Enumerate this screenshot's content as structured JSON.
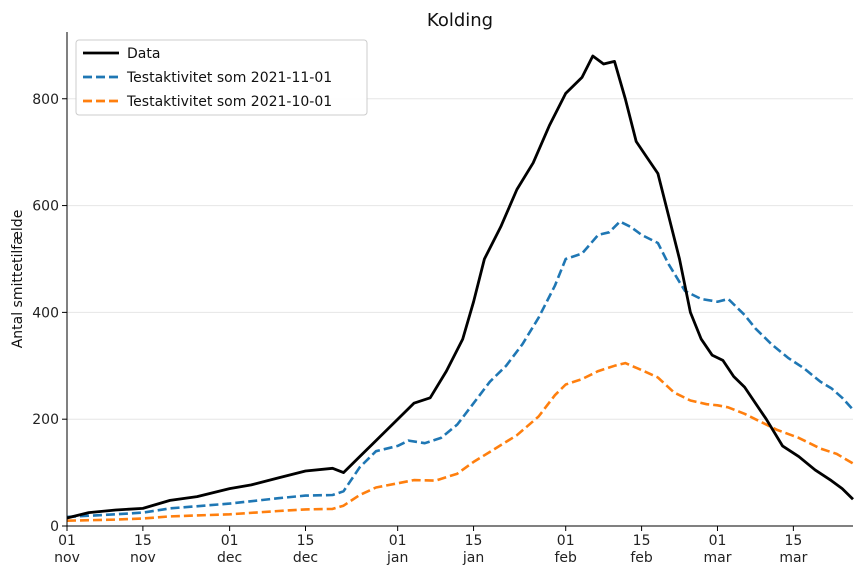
{
  "chart_data": {
    "type": "line",
    "title": "Kolding",
    "ylabel": "Antal smittetilfælde",
    "xlabel": "",
    "xlim": [
      "2021-11-01",
      "2022-03-26"
    ],
    "ylim": [
      0,
      925
    ],
    "yticks": [
      0,
      200,
      400,
      600,
      800
    ],
    "xticks": [
      {
        "date": "2021-11-01",
        "label": [
          "01",
          "nov"
        ]
      },
      {
        "date": "2021-11-15",
        "label": [
          "15",
          "nov"
        ]
      },
      {
        "date": "2021-12-01",
        "label": [
          "01",
          "dec"
        ]
      },
      {
        "date": "2021-12-15",
        "label": [
          "15",
          "dec"
        ]
      },
      {
        "date": "2022-01-01",
        "label": [
          "01",
          "jan"
        ]
      },
      {
        "date": "2022-01-15",
        "label": [
          "15",
          "jan"
        ]
      },
      {
        "date": "2022-02-01",
        "label": [
          "01",
          "feb"
        ]
      },
      {
        "date": "2022-02-15",
        "label": [
          "15",
          "feb"
        ]
      },
      {
        "date": "2022-03-01",
        "label": [
          "01",
          "mar"
        ]
      },
      {
        "date": "2022-03-15",
        "label": [
          "15",
          "mar"
        ]
      }
    ],
    "grid": "horizontal",
    "legend_position": "top-left",
    "series": [
      {
        "name": "Data",
        "color": "#000000",
        "style": "solid",
        "points": [
          [
            "2021-11-01",
            15
          ],
          [
            "2021-11-05",
            25
          ],
          [
            "2021-11-10",
            30
          ],
          [
            "2021-11-15",
            33
          ],
          [
            "2021-11-20",
            48
          ],
          [
            "2021-11-25",
            55
          ],
          [
            "2021-12-01",
            70
          ],
          [
            "2021-12-05",
            77
          ],
          [
            "2021-12-10",
            90
          ],
          [
            "2021-12-15",
            103
          ],
          [
            "2021-12-20",
            108
          ],
          [
            "2021-12-22",
            100
          ],
          [
            "2021-12-25",
            130
          ],
          [
            "2021-12-28",
            160
          ],
          [
            "2022-01-01",
            200
          ],
          [
            "2022-01-04",
            230
          ],
          [
            "2022-01-07",
            240
          ],
          [
            "2022-01-10",
            290
          ],
          [
            "2022-01-13",
            350
          ],
          [
            "2022-01-15",
            420
          ],
          [
            "2022-01-17",
            500
          ],
          [
            "2022-01-20",
            560
          ],
          [
            "2022-01-23",
            630
          ],
          [
            "2022-01-26",
            680
          ],
          [
            "2022-01-29",
            750
          ],
          [
            "2022-02-01",
            810
          ],
          [
            "2022-02-04",
            840
          ],
          [
            "2022-02-06",
            880
          ],
          [
            "2022-02-08",
            865
          ],
          [
            "2022-02-10",
            870
          ],
          [
            "2022-02-12",
            800
          ],
          [
            "2022-02-14",
            720
          ],
          [
            "2022-02-16",
            690
          ],
          [
            "2022-02-18",
            660
          ],
          [
            "2022-02-20",
            580
          ],
          [
            "2022-02-22",
            500
          ],
          [
            "2022-02-24",
            400
          ],
          [
            "2022-02-26",
            350
          ],
          [
            "2022-02-28",
            320
          ],
          [
            "2022-03-02",
            310
          ],
          [
            "2022-03-04",
            280
          ],
          [
            "2022-03-06",
            260
          ],
          [
            "2022-03-10",
            200
          ],
          [
            "2022-03-13",
            150
          ],
          [
            "2022-03-16",
            130
          ],
          [
            "2022-03-19",
            105
          ],
          [
            "2022-03-22",
            85
          ],
          [
            "2022-03-24",
            70
          ],
          [
            "2022-03-26",
            50
          ]
        ]
      },
      {
        "name": "Testaktivitet som 2021-11-01",
        "color": "#1f77b4",
        "style": "dashed",
        "points": [
          [
            "2021-11-01",
            17
          ],
          [
            "2021-11-10",
            22
          ],
          [
            "2021-11-15",
            25
          ],
          [
            "2021-11-20",
            33
          ],
          [
            "2021-12-01",
            42
          ],
          [
            "2021-12-10",
            52
          ],
          [
            "2021-12-15",
            57
          ],
          [
            "2021-12-20",
            58
          ],
          [
            "2021-12-22",
            65
          ],
          [
            "2021-12-25",
            110
          ],
          [
            "2021-12-28",
            140
          ],
          [
            "2022-01-01",
            150
          ],
          [
            "2022-01-03",
            160
          ],
          [
            "2022-01-06",
            155
          ],
          [
            "2022-01-09",
            165
          ],
          [
            "2022-01-12",
            190
          ],
          [
            "2022-01-15",
            230
          ],
          [
            "2022-01-18",
            270
          ],
          [
            "2022-01-21",
            300
          ],
          [
            "2022-01-24",
            340
          ],
          [
            "2022-01-27",
            390
          ],
          [
            "2022-01-30",
            450
          ],
          [
            "2022-02-01",
            500
          ],
          [
            "2022-02-04",
            510
          ],
          [
            "2022-02-07",
            545
          ],
          [
            "2022-02-09",
            550
          ],
          [
            "2022-02-11",
            570
          ],
          [
            "2022-02-13",
            560
          ],
          [
            "2022-02-15",
            545
          ],
          [
            "2022-02-18",
            530
          ],
          [
            "2022-02-20",
            490
          ],
          [
            "2022-02-23",
            440
          ],
          [
            "2022-02-26",
            425
          ],
          [
            "2022-03-01",
            420
          ],
          [
            "2022-03-03",
            425
          ],
          [
            "2022-03-06",
            395
          ],
          [
            "2022-03-08",
            370
          ],
          [
            "2022-03-11",
            340
          ],
          [
            "2022-03-14",
            315
          ],
          [
            "2022-03-17",
            295
          ],
          [
            "2022-03-20",
            270
          ],
          [
            "2022-03-22",
            258
          ],
          [
            "2022-03-24",
            240
          ],
          [
            "2022-03-26",
            218
          ]
        ]
      },
      {
        "name": "Testaktivitet som 2021-10-01",
        "color": "#ff7f0e",
        "style": "dashed",
        "points": [
          [
            "2021-11-01",
            10
          ],
          [
            "2021-11-10",
            12
          ],
          [
            "2021-11-15",
            14
          ],
          [
            "2021-11-20",
            18
          ],
          [
            "2021-12-01",
            22
          ],
          [
            "2021-12-10",
            28
          ],
          [
            "2021-12-15",
            31
          ],
          [
            "2021-12-20",
            32
          ],
          [
            "2021-12-22",
            38
          ],
          [
            "2021-12-25",
            58
          ],
          [
            "2021-12-28",
            72
          ],
          [
            "2022-01-01",
            80
          ],
          [
            "2022-01-04",
            86
          ],
          [
            "2022-01-08",
            85
          ],
          [
            "2022-01-12",
            98
          ],
          [
            "2022-01-15",
            120
          ],
          [
            "2022-01-19",
            145
          ],
          [
            "2022-01-23",
            170
          ],
          [
            "2022-01-27",
            205
          ],
          [
            "2022-01-30",
            245
          ],
          [
            "2022-02-01",
            265
          ],
          [
            "2022-02-04",
            275
          ],
          [
            "2022-02-07",
            290
          ],
          [
            "2022-02-10",
            300
          ],
          [
            "2022-02-12",
            305
          ],
          [
            "2022-02-15",
            292
          ],
          [
            "2022-02-18",
            278
          ],
          [
            "2022-02-21",
            250
          ],
          [
            "2022-02-24",
            235
          ],
          [
            "2022-02-27",
            228
          ],
          [
            "2022-03-01",
            226
          ],
          [
            "2022-03-03",
            222
          ],
          [
            "2022-03-06",
            210
          ],
          [
            "2022-03-09",
            195
          ],
          [
            "2022-03-12",
            180
          ],
          [
            "2022-03-16",
            165
          ],
          [
            "2022-03-20",
            145
          ],
          [
            "2022-03-23",
            135
          ],
          [
            "2022-03-26",
            117
          ]
        ]
      }
    ]
  }
}
